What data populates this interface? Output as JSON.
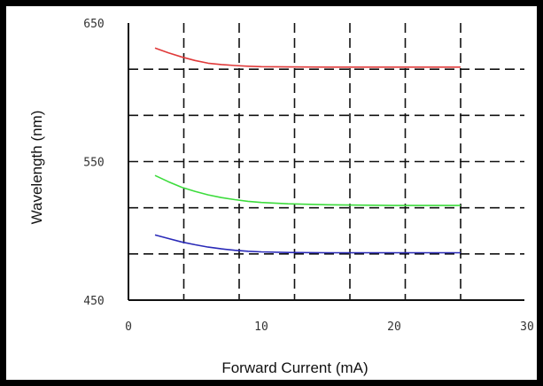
{
  "chart_data": {
    "type": "line",
    "xlabel": "Forward Current (mA)",
    "ylabel": "Wavelength (nm)",
    "xlim": [
      0,
      30
    ],
    "ylim": [
      450,
      650
    ],
    "x_ticks": [
      "0",
      "10",
      "20",
      "30"
    ],
    "y_ticks": [
      "450",
      "550",
      "650"
    ],
    "grid": true,
    "grid_style": "dashed",
    "series": [
      {
        "color": "#e03a3a",
        "x": [
          2,
          3,
          4,
          5,
          6,
          7,
          8,
          9,
          10,
          12,
          15,
          20,
          25
        ],
        "y": [
          632,
          628.5,
          625.5,
          623,
          621,
          620,
          619.3,
          618.8,
          618.5,
          618.3,
          618.2,
          618.2,
          618.2
        ]
      },
      {
        "color": "#3ddc3d",
        "x": [
          2,
          3,
          4,
          5,
          6,
          7,
          8,
          9,
          10,
          12,
          15,
          20,
          25
        ],
        "y": [
          540,
          535.5,
          531.5,
          528.5,
          526,
          524,
          522.5,
          521.3,
          520.5,
          519.5,
          518.8,
          518.3,
          518.3
        ]
      },
      {
        "color": "#2a2ab8",
        "x": [
          2,
          3,
          4,
          5,
          6,
          7,
          8,
          9,
          10,
          12,
          15,
          20,
          25
        ],
        "y": [
          497,
          494.5,
          492,
          490,
          488.3,
          487,
          486,
          485.3,
          484.8,
          484.4,
          484.2,
          484.2,
          484.2
        ]
      }
    ]
  }
}
